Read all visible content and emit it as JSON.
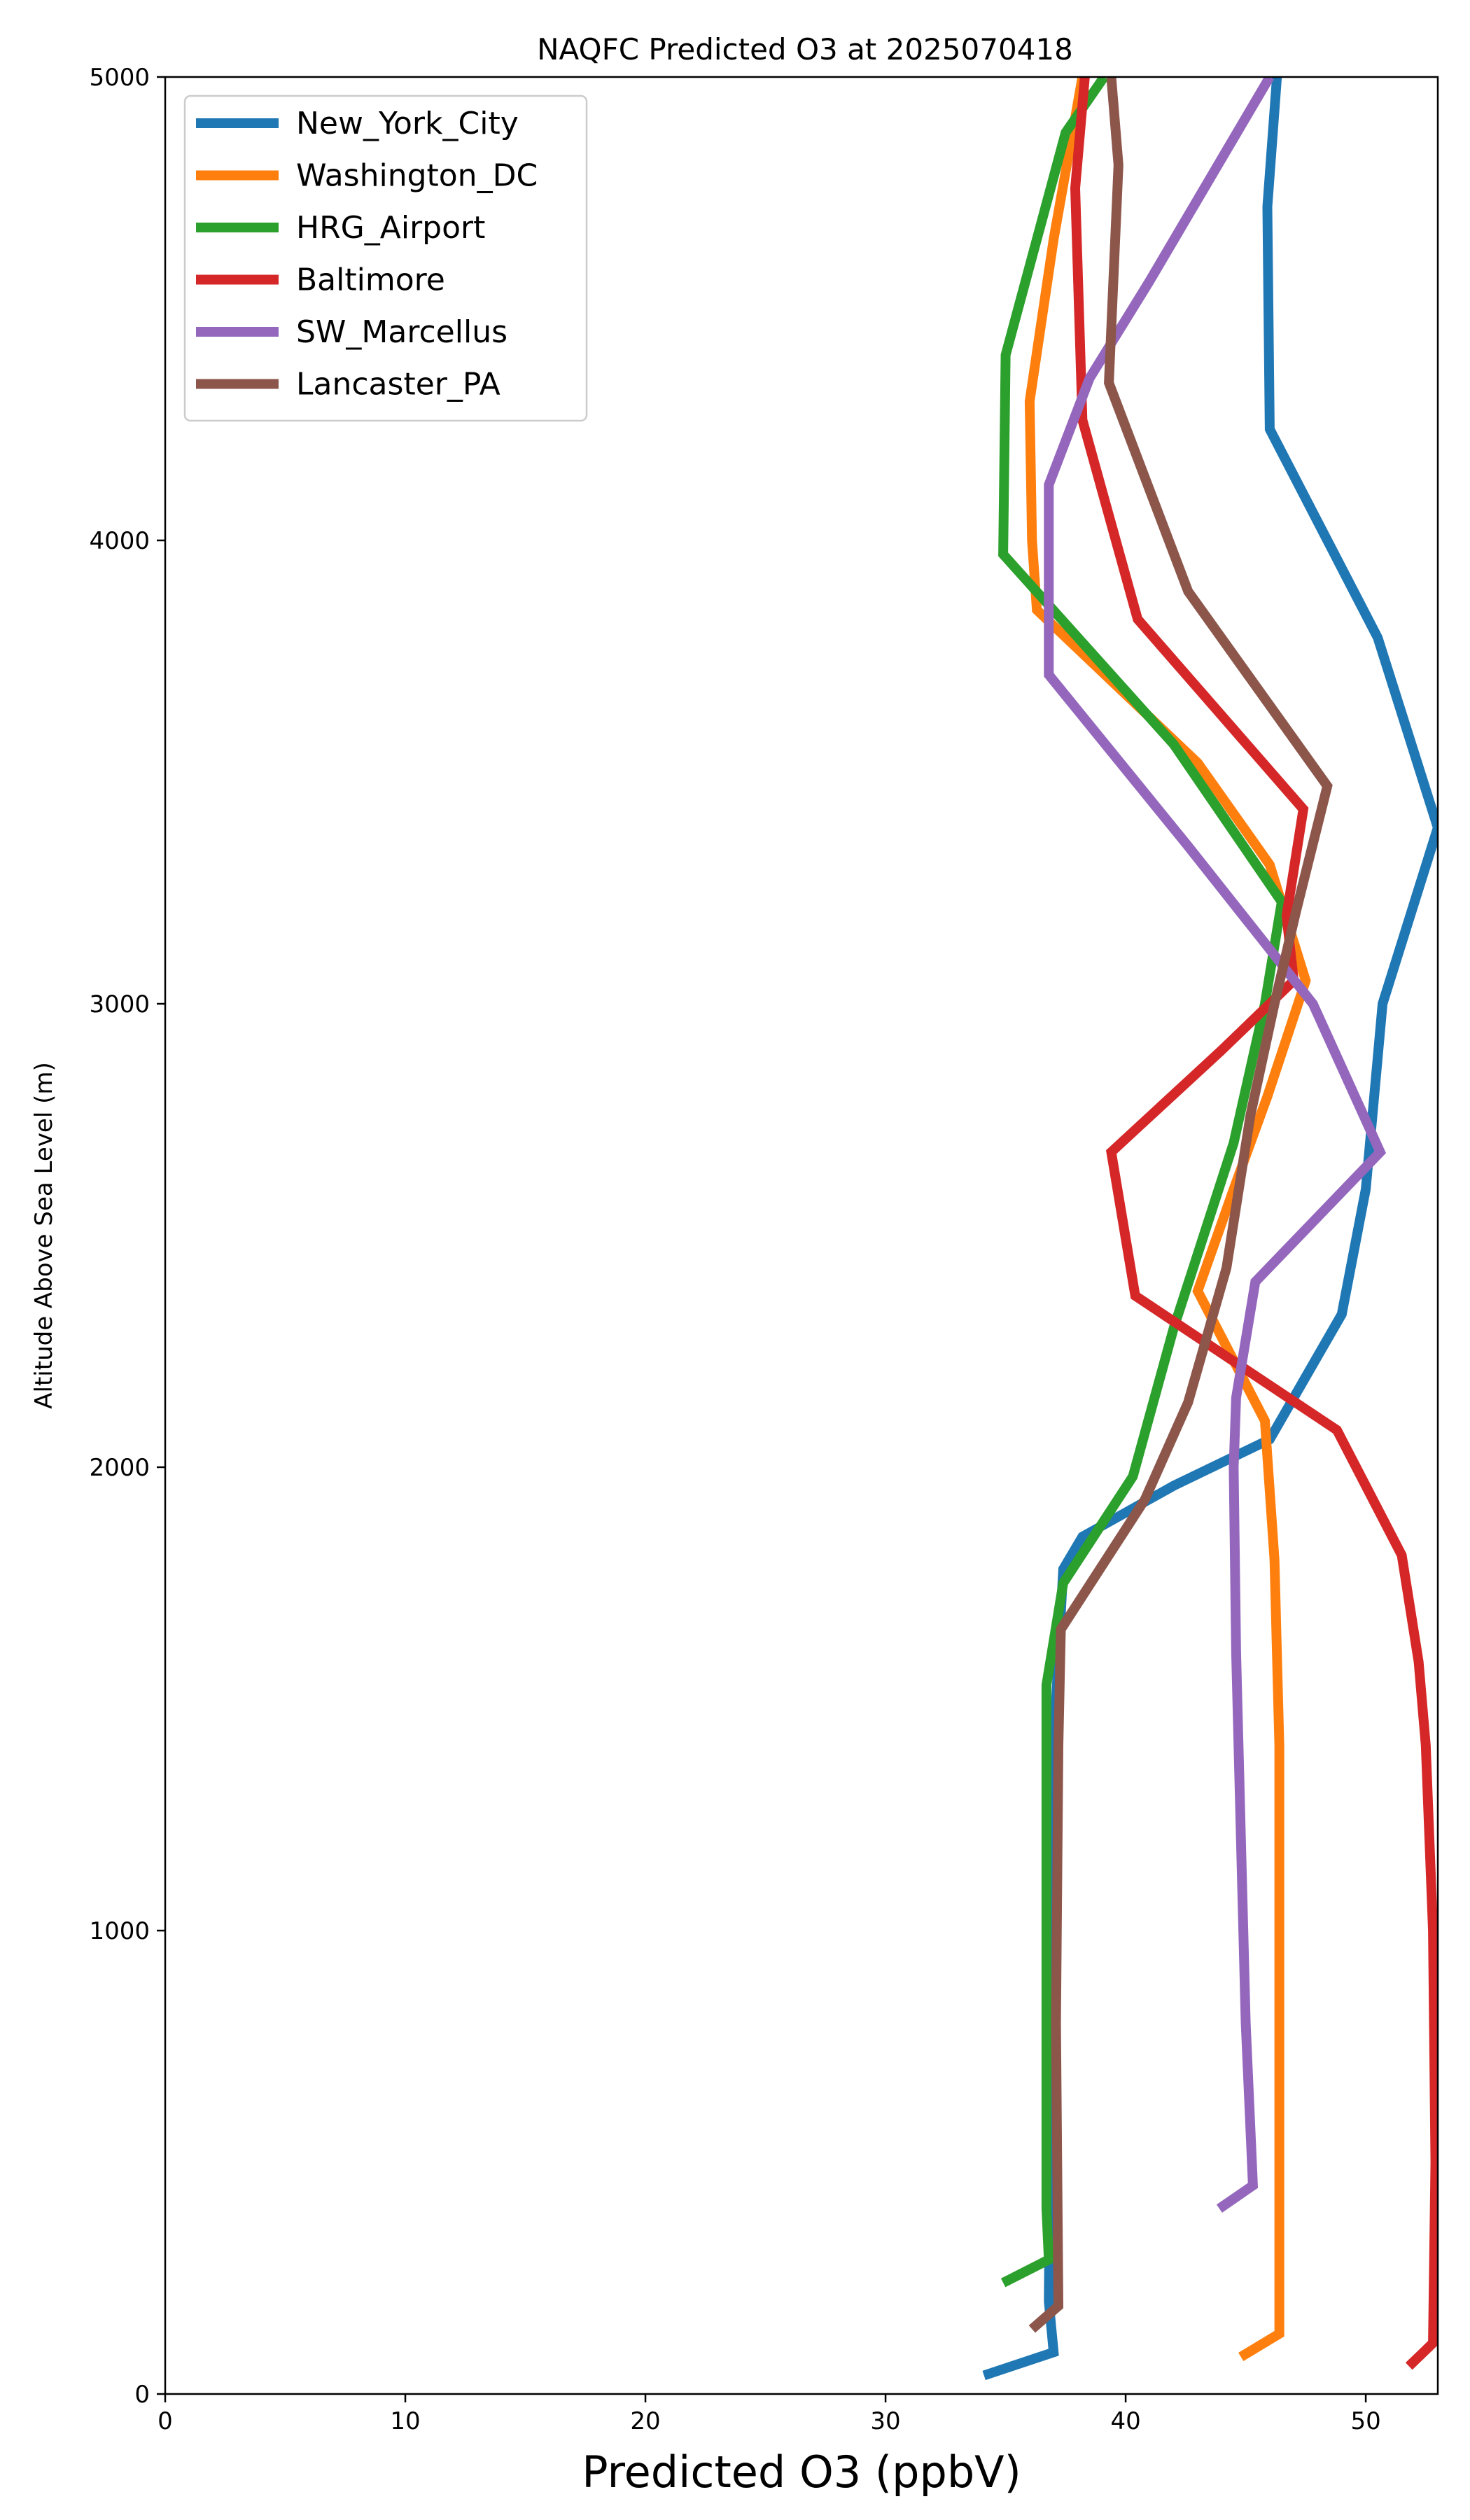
{
  "chart_data": {
    "type": "line",
    "title": "NAQFC Predicted O3 at 2025070418",
    "xlabel": "Predicted O3 (ppbV)",
    "ylabel": "Altitude Above Sea Level (m)",
    "xlim": [
      0,
      53
    ],
    "ylim": [
      0,
      5000
    ],
    "xticks": [
      0,
      10,
      20,
      30,
      40,
      50
    ],
    "yticks": [
      0,
      1000,
      2000,
      3000,
      4000,
      5000
    ],
    "grid": false,
    "legend": "top-left",
    "series": [
      {
        "name": "New_York_City",
        "color": "#1f77b4",
        "points": [
          [
            34.1,
            40
          ],
          [
            37.0,
            90
          ],
          [
            36.8,
            200
          ],
          [
            36.9,
            800
          ],
          [
            37.0,
            1400
          ],
          [
            37.4,
            1780
          ],
          [
            38.2,
            1850
          ],
          [
            42.0,
            1960
          ],
          [
            46.0,
            2060
          ],
          [
            49.0,
            2330
          ],
          [
            50.0,
            2600
          ],
          [
            50.7,
            3000
          ],
          [
            53.0,
            3380
          ],
          [
            50.5,
            3790
          ],
          [
            46.0,
            4240
          ],
          [
            45.9,
            4720
          ],
          [
            46.3,
            5000
          ]
        ]
      },
      {
        "name": "Washington_DC",
        "color": "#ff7f0e",
        "points": [
          [
            44.8,
            80
          ],
          [
            46.4,
            130
          ],
          [
            46.4,
            800
          ],
          [
            46.4,
            1400
          ],
          [
            46.2,
            1800
          ],
          [
            45.8,
            2100
          ],
          [
            43.0,
            2380
          ],
          [
            44.5,
            2600
          ],
          [
            45.9,
            2800
          ],
          [
            47.5,
            3050
          ],
          [
            46.0,
            3300
          ],
          [
            43.0,
            3520
          ],
          [
            36.3,
            3850
          ],
          [
            36.1,
            4000
          ],
          [
            36.0,
            4300
          ],
          [
            37.0,
            4650
          ],
          [
            38.2,
            5000
          ]
        ]
      },
      {
        "name": "HRG_Airport",
        "color": "#2ca02c",
        "points": [
          [
            34.9,
            240
          ],
          [
            36.8,
            290
          ],
          [
            36.7,
            400
          ],
          [
            36.7,
            800
          ],
          [
            36.7,
            1530
          ],
          [
            37.4,
            1750
          ],
          [
            40.3,
            1980
          ],
          [
            42.0,
            2300
          ],
          [
            44.5,
            2700
          ],
          [
            45.8,
            3000
          ],
          [
            46.5,
            3220
          ],
          [
            42.0,
            3560
          ],
          [
            34.9,
            3970
          ],
          [
            35.0,
            4400
          ],
          [
            37.5,
            4880
          ],
          [
            39.1,
            5000
          ]
        ]
      },
      {
        "name": "Baltimore",
        "color": "#d62728",
        "points": [
          [
            51.8,
            60
          ],
          [
            52.8,
            110
          ],
          [
            52.9,
            500
          ],
          [
            52.8,
            1000
          ],
          [
            52.5,
            1400
          ],
          [
            52.2,
            1580
          ],
          [
            51.5,
            1810
          ],
          [
            48.8,
            2080
          ],
          [
            40.4,
            2370
          ],
          [
            39.4,
            2680
          ],
          [
            44.0,
            2900
          ],
          [
            47.0,
            3050
          ],
          [
            46.7,
            3190
          ],
          [
            47.4,
            3420
          ],
          [
            40.5,
            3830
          ],
          [
            38.2,
            4260
          ],
          [
            37.9,
            4760
          ],
          [
            38.3,
            5000
          ]
        ]
      },
      {
        "name": "SW_Marcellus",
        "color": "#9467bd",
        "points": [
          [
            43.9,
            400
          ],
          [
            45.3,
            450
          ],
          [
            45.0,
            800
          ],
          [
            44.8,
            1200
          ],
          [
            44.6,
            1600
          ],
          [
            44.5,
            2000
          ],
          [
            44.6,
            2150
          ],
          [
            45.4,
            2400
          ],
          [
            50.6,
            2680
          ],
          [
            47.8,
            3000
          ],
          [
            42.6,
            3340
          ],
          [
            36.8,
            3710
          ],
          [
            36.8,
            4120
          ],
          [
            38.5,
            4350
          ],
          [
            41.0,
            4560
          ],
          [
            46.0,
            5000
          ]
        ]
      },
      {
        "name": "Lancaster_PA",
        "color": "#8c564b",
        "points": [
          [
            36.1,
            140
          ],
          [
            37.2,
            190
          ],
          [
            37.1,
            800
          ],
          [
            37.2,
            1400
          ],
          [
            37.3,
            1650
          ],
          [
            40.8,
            1930
          ],
          [
            42.6,
            2140
          ],
          [
            44.2,
            2430
          ],
          [
            45.2,
            2760
          ],
          [
            46.2,
            3000
          ],
          [
            47.1,
            3200
          ],
          [
            48.4,
            3470
          ],
          [
            42.6,
            3890
          ],
          [
            39.3,
            4340
          ],
          [
            39.7,
            4810
          ],
          [
            39.4,
            5000
          ]
        ]
      }
    ]
  }
}
